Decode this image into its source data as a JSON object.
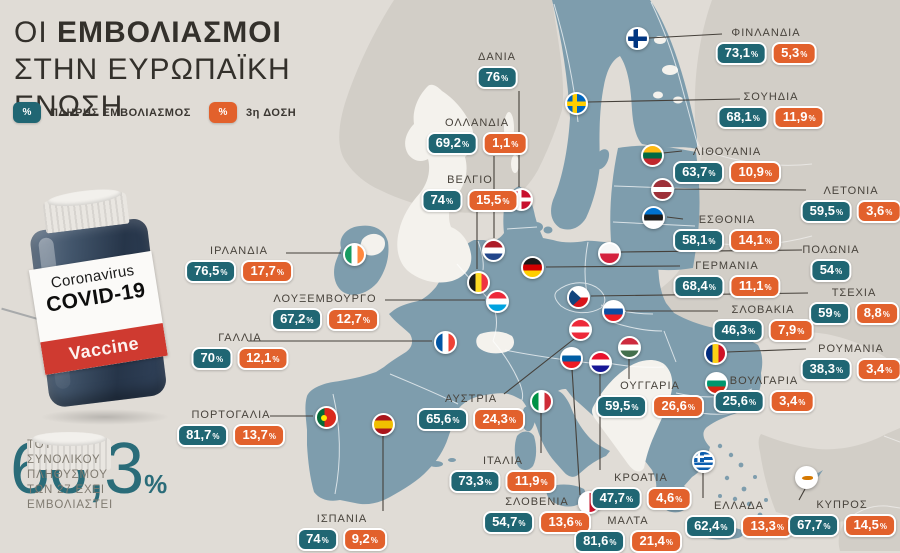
{
  "title": {
    "line1_light": "ΟΙ ",
    "line1_bold": "ΕΜΒΟΛΙΑΣΜΟΙ",
    "line2": "ΣΤΗΝ ΕΥΡΩΠΑΪΚΗ",
    "line3": "ΕΝΩΣΗ"
  },
  "legend": {
    "symbol": "%",
    "full_label": "ΠΛΗΡΗΣ ΕΜΒΟΛΙΑΣΜΟΣ",
    "third_label": "3η ΔΟΣΗ",
    "full_color": "#206673",
    "third_color": "#e2612c"
  },
  "summary": {
    "value": "66,3",
    "percent_sign": "%",
    "caption_lines": [
      "ΤΟΥ ΣΥΝΟΛΙΚΟΥ",
      "ΠΛΗΘΥΣΜΟΥ ΤΩΝ 27 ΕΧΕΙ",
      "ΕΜΒΟΛΙΑΣΤΕΙ"
    ]
  },
  "bottle": {
    "line1": "Coronavirus",
    "line2": "COVID-19",
    "line3": "Vaccine"
  },
  "chart_data": {
    "type": "map",
    "title": "ΟΙ ΕΜΒΟΛΙΑΣΜΟΙ ΣΤΗΝ ΕΥΡΩΠΑΪΚΗ ΕΝΩΣΗ",
    "unit": "%",
    "legend": [
      "ΠΛΗΡΗΣ ΕΜΒΟΛΙΑΣΜΟΣ",
      "3η ΔΟΣΗ"
    ],
    "eu_total_fully_vaccinated_pct": "66,3",
    "map_colors": {
      "eu_member": "#7e9dad",
      "non_eu": "#d2cec7",
      "sea": "#e0dcd6"
    },
    "countries": [
      {
        "code": "fi",
        "name": "ΦΙΝΛΑΝΔΙΑ",
        "full": "73,1",
        "third": "5,3"
      },
      {
        "code": "se",
        "name": "ΣΟΥΗΔΙΑ",
        "full": "68,1",
        "third": "11,9"
      },
      {
        "code": "dk",
        "name": "ΔΑΝΙΑ",
        "full": "76",
        "third": null
      },
      {
        "code": "nl",
        "name": "ΟΛΛΑΝΔΙΑ",
        "full": "69,2",
        "third": "1,1"
      },
      {
        "code": "be",
        "name": "ΒΕΛΓΙΟ",
        "full": "74",
        "third": "15,5"
      },
      {
        "code": "ie",
        "name": "ΙΡΛΑΝΔΙΑ",
        "full": "76,5",
        "third": "17,7"
      },
      {
        "code": "lu",
        "name": "ΛΟΥΞΕΜΒΟΥΡΓΟ",
        "full": "67,2",
        "third": "12,7"
      },
      {
        "code": "fr",
        "name": "ΓΑΛΛΙΑ",
        "full": "70",
        "third": "12,1"
      },
      {
        "code": "de",
        "name": "ΓΕΡΜΑΝΙΑ",
        "full": "68,4",
        "third": "11,1"
      },
      {
        "code": "pl",
        "name": "ΠΟΛΩΝΙΑ",
        "full": "54",
        "third": null
      },
      {
        "code": "lt",
        "name": "ΛΙΘΟΥΑΝΙΑ",
        "full": "63,7",
        "third": "10,9"
      },
      {
        "code": "lv",
        "name": "ΛΕΤΟΝΙΑ",
        "full": "59,5",
        "third": "3,6"
      },
      {
        "code": "ee",
        "name": "ΕΣΘΟΝΙΑ",
        "full": "58,1",
        "third": "14,1"
      },
      {
        "code": "cz",
        "name": "ΤΣΕΧΙΑ",
        "full": "59",
        "third": "8,8"
      },
      {
        "code": "sk",
        "name": "ΣΛΟΒΑΚΙΑ",
        "full": "46,3",
        "third": "7,9"
      },
      {
        "code": "at",
        "name": "ΑΥΣΤΡΙΑ",
        "full": "65,6",
        "third": "24,3"
      },
      {
        "code": "hu",
        "name": "ΟΥΓΓΑΡΙΑ",
        "full": "59,5",
        "third": "26,6"
      },
      {
        "code": "ro",
        "name": "ΡΟΥΜΑΝΙΑ",
        "full": "38,3",
        "third": "3,4"
      },
      {
        "code": "bg",
        "name": "ΒΟΥΛΓΑΡΙΑ",
        "full": "25,6",
        "third": "3,4"
      },
      {
        "code": "si",
        "name": "ΣΛΟΒΕΝΙΑ",
        "full": "54,7",
        "third": "13,6"
      },
      {
        "code": "hr",
        "name": "ΚΡΟΑΤΙΑ",
        "full": "47,7",
        "third": "4,6"
      },
      {
        "code": "it",
        "name": "ΙΤΑΛΙΑ",
        "full": "73,3",
        "third": "11,9"
      },
      {
        "code": "pt",
        "name": "ΠΟΡΤΟΓΑΛΙΑ",
        "full": "81,7",
        "third": "13,7"
      },
      {
        "code": "es",
        "name": "ΙΣΠΑΝΙΑ",
        "full": "74",
        "third": "9,2"
      },
      {
        "code": "gr",
        "name": "ΕΛΛΑΔΑ",
        "full": "62,4",
        "third": "13,3"
      },
      {
        "code": "mt",
        "name": "ΜΑΛΤΑ",
        "full": "81,6",
        "third": "21,4"
      },
      {
        "code": "cy",
        "name": "ΚΥΠΡΟΣ",
        "full": "67,7",
        "third": "14,5"
      }
    ]
  }
}
